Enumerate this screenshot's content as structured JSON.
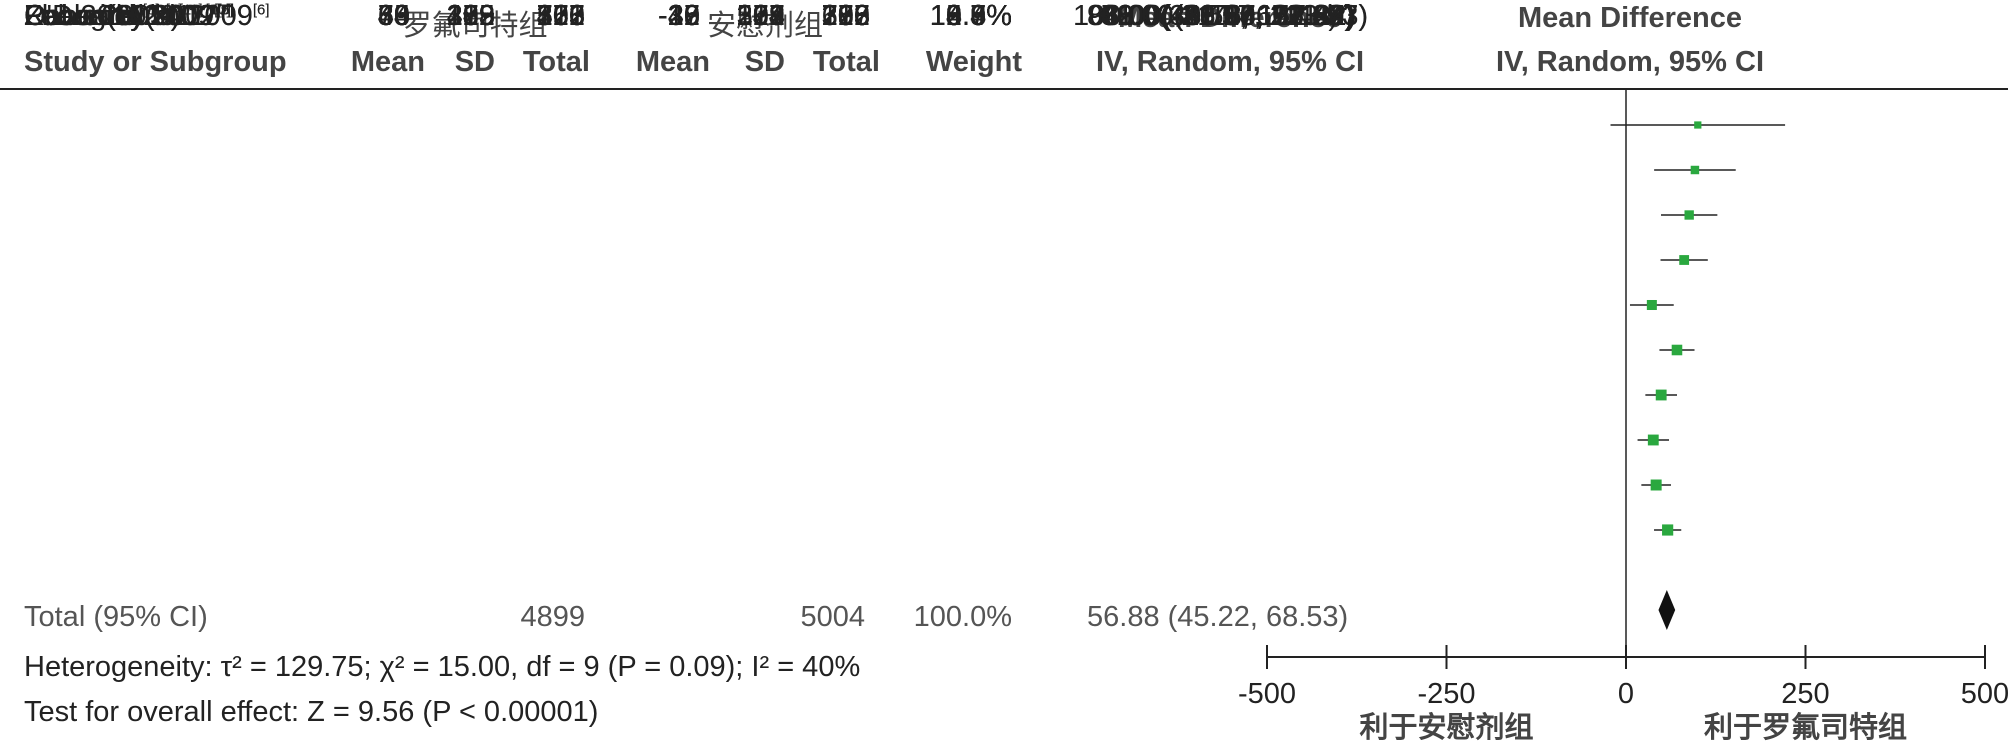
{
  "headers": {
    "group_treat": "罗氟司特组",
    "group_ctrl": "安慰剂组",
    "study": "Study or Subgroup",
    "mean_t": "Mean",
    "sd_t": "SD",
    "total_t": "Total",
    "mean_c": "Mean",
    "sd_c": "SD",
    "total_c": "Total",
    "weight": "Weight",
    "md_title": "Mean Difference",
    "md_method": "IV, Random, 95% CI",
    "plot_title": "Mean Difference",
    "plot_method": "IV, Random, 95% CI"
  },
  "studies": [
    {
      "name": "O'Donnel 2012",
      "ref": "[9]",
      "mean_t": "70",
      "sd_t": "479",
      "n_t": "127",
      "mean_c": "-30",
      "sd_c": "501",
      "n_c": "123",
      "weight": "0.9%",
      "ci_text": "100.00(-21.57, 221.57)"
    },
    {
      "name": "Lee 2011",
      "ref": "[8]",
      "mean_t": "54",
      "sd_t": "289",
      "n_t": "203",
      "mean_c": "-42",
      "sd_c": "298",
      "n_c": "207",
      "weight": "3.6%",
      "ci_text": "96.00(39.18, 152.82)"
    },
    {
      "name": "Rabe 2005",
      "ref": "[4]",
      "mean_t": "49",
      "sd_t": "283",
      "n_t": "555",
      "mean_c": "-39",
      "sd_c": "268",
      "n_c": "280",
      "weight": "6.7%",
      "ci_text": "88.00(48.76, 127.24)"
    },
    {
      "name": "Fabbri(b) 2009",
      "ref": "[7]",
      "mean_t": "65",
      "sd_t": "229",
      "n_t": "371",
      "mean_c": "-16",
      "sd_c": "229",
      "n_c": "372",
      "weight": "8.6%",
      "ci_text": "81.00(48.07, 113.93)"
    },
    {
      "name": "Calverley 2007",
      "ref": "[5]",
      "mean_t": "9",
      "sd_t": "303",
      "n_t": "760",
      "mean_c": "-27",
      "sd_c": "302",
      "n_c": "753",
      "weight": "9.5%",
      "ci_text": "36.00(5.52, 66.48)"
    },
    {
      "name": "Zheng 2014",
      "ref": "[11]",
      "mean_t": "49",
      "sd_t": "155",
      "n_t": "313",
      "mean_c": "-22",
      "sd_c": "157",
      "n_c": "313",
      "weight": "12.4%",
      "ci_text": "71.00(46.56, 95.44)"
    },
    {
      "name": "Fabbri(a) 2009",
      "ref": "[7]",
      "mean_t": "39",
      "sd_t": "192",
      "n_t": "466",
      "mean_c": "-10",
      "sd_c": "194",
      "n_c": "796",
      "weight": "13.8%",
      "ci_text": "49.00(26.97, 71.03)"
    },
    {
      "name": "Calverley(a) 2009",
      "ref": "[6]",
      "mean_t": "46",
      "sd_t": "218",
      "n_t": "765",
      "mean_c": "8",
      "sd_c": "218",
      "n_c": "758",
      "weight": "13.9%",
      "ci_text": "38.00(16.10, 59.90)"
    },
    {
      "name": "Rennard 2011",
      "ref": "[10]",
      "mean_t": "30",
      "sd_t": "182",
      "n_t": "567",
      "mean_c": "-12",
      "sd_c": "178",
      "n_c": "606",
      "weight": "14.7%",
      "ci_text": "42.00(21.38, 62.62)"
    },
    {
      "name": "Calverley(b) 2009",
      "ref": "[6]",
      "mean_t": "33",
      "sd_t": "189",
      "n_t": "772",
      "mean_c": "-25",
      "sd_c": "194",
      "n_c": "796",
      "weight": "15.8%",
      "ci_text": "58.00(39.04, 76.96)"
    }
  ],
  "total": {
    "label": "Total (95% CI)",
    "n_t": "4899",
    "n_c": "5004",
    "weight": "100.0%",
    "ci_text": "56.88 (45.22, 68.53)"
  },
  "footer": {
    "heterogeneity": "Heterogeneity: τ² = 129.75; χ² = 15.00, df = 9 (P = 0.09); I² = 40%",
    "overall": "Test for overall effect: Z = 9.56 (P < 0.00001)"
  },
  "colors": {
    "marker": "#2aa83f",
    "diamond": "#111111",
    "line": "#222222"
  },
  "chart_data": {
    "type": "forest",
    "title": "Mean Difference",
    "subtitle": "IV, Random, 95% CI",
    "xlim": [
      -500,
      500
    ],
    "xticks": [
      -500,
      -250,
      0,
      250,
      500
    ],
    "xtick_labels": [
      "-500",
      "-250",
      "0",
      "250",
      "500"
    ],
    "left_label": "利于安慰剂组",
    "right_label": "利于罗氟司特组",
    "points": [
      {
        "study": "O'Donnel 2012",
        "estimate": 100.0,
        "lower": -21.57,
        "upper": 221.57,
        "weight": 0.9
      },
      {
        "study": "Lee 2011",
        "estimate": 96.0,
        "lower": 39.18,
        "upper": 152.82,
        "weight": 3.6
      },
      {
        "study": "Rabe 2005",
        "estimate": 88.0,
        "lower": 48.76,
        "upper": 127.24,
        "weight": 6.7
      },
      {
        "study": "Fabbri(b) 2009",
        "estimate": 81.0,
        "lower": 48.07,
        "upper": 113.93,
        "weight": 8.6
      },
      {
        "study": "Calverley 2007",
        "estimate": 36.0,
        "lower": 5.52,
        "upper": 66.48,
        "weight": 9.5
      },
      {
        "study": "Zheng 2014",
        "estimate": 71.0,
        "lower": 46.56,
        "upper": 95.44,
        "weight": 12.4
      },
      {
        "study": "Fabbri(a) 2009",
        "estimate": 49.0,
        "lower": 26.97,
        "upper": 71.03,
        "weight": 13.8
      },
      {
        "study": "Calverley(a) 2009",
        "estimate": 38.0,
        "lower": 16.1,
        "upper": 59.9,
        "weight": 13.9
      },
      {
        "study": "Rennard 2011",
        "estimate": 42.0,
        "lower": 21.38,
        "upper": 62.62,
        "weight": 14.7
      },
      {
        "study": "Calverley(b) 2009",
        "estimate": 58.0,
        "lower": 39.04,
        "upper": 76.96,
        "weight": 15.8
      }
    ],
    "pooled": {
      "estimate": 56.88,
      "lower": 45.22,
      "upper": 68.53
    }
  }
}
